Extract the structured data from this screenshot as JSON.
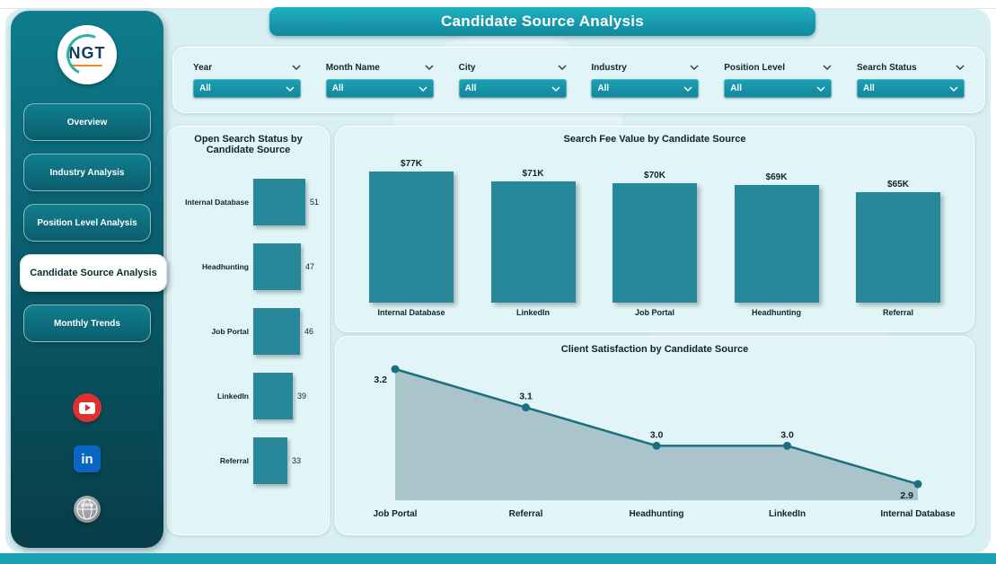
{
  "header": {
    "title": "Candidate Source Analysis"
  },
  "sidebar": {
    "logo_text": "NGT",
    "items": [
      "Overview",
      "Industry Analysis",
      "Position Level Analysis",
      "Candidate Source Analysis",
      "Monthly Trends"
    ],
    "active_index": 3,
    "icons": {
      "linkedin_glyph": "in",
      "globe_text": "www"
    }
  },
  "filters": [
    {
      "label": "Year",
      "value": "All"
    },
    {
      "label": "Month Name",
      "value": "All"
    },
    {
      "label": "City",
      "value": "All"
    },
    {
      "label": "Industry",
      "value": "All"
    },
    {
      "label": "Position Level",
      "value": "All"
    },
    {
      "label": "Search Status",
      "value": "All"
    }
  ],
  "chart_data": [
    {
      "type": "bar",
      "orientation": "horizontal",
      "title": "Open Search Status by Candidate Source",
      "categories": [
        "Internal Database",
        "Headhunting",
        "Job Portal",
        "LinkedIn",
        "Referral"
      ],
      "values": [
        51,
        47,
        46,
        39,
        33
      ],
      "xlim": [
        0,
        51
      ],
      "bar_color": "#27879b"
    },
    {
      "type": "bar",
      "orientation": "vertical",
      "title": "Search Fee Value by Candidate Source",
      "categories": [
        "Internal Database",
        "LinkedIn",
        "Job Portal",
        "Headhunting",
        "Referral"
      ],
      "values": [
        77,
        71,
        70,
        69,
        65
      ],
      "value_labels": [
        "$77K",
        "$71K",
        "$70K",
        "$69K",
        "$65K"
      ],
      "ylim": [
        0,
        80
      ],
      "bar_color": "#27879b"
    },
    {
      "type": "area",
      "title": "Client Satisfaction by Candidate Source",
      "categories": [
        "Job Portal",
        "Referral",
        "Headhunting",
        "LinkedIn",
        "Internal Database"
      ],
      "values": [
        3.2,
        3.1,
        3.0,
        3.0,
        2.9
      ],
      "value_labels": [
        "3.2",
        "3.1",
        "3.0",
        "3.0",
        "2.9"
      ],
      "ylim": [
        2.8,
        3.3
      ],
      "line_color": "#1c6f80",
      "fill_color": "#a9c4ca"
    }
  ],
  "colors": {
    "teal": "#27879b",
    "banner": "#17a0b2",
    "background": "#d8f0f4",
    "sidebar_dark": "#073d48",
    "youtube_red": "#e02f2f",
    "linkedin_blue": "#0a66c2"
  }
}
